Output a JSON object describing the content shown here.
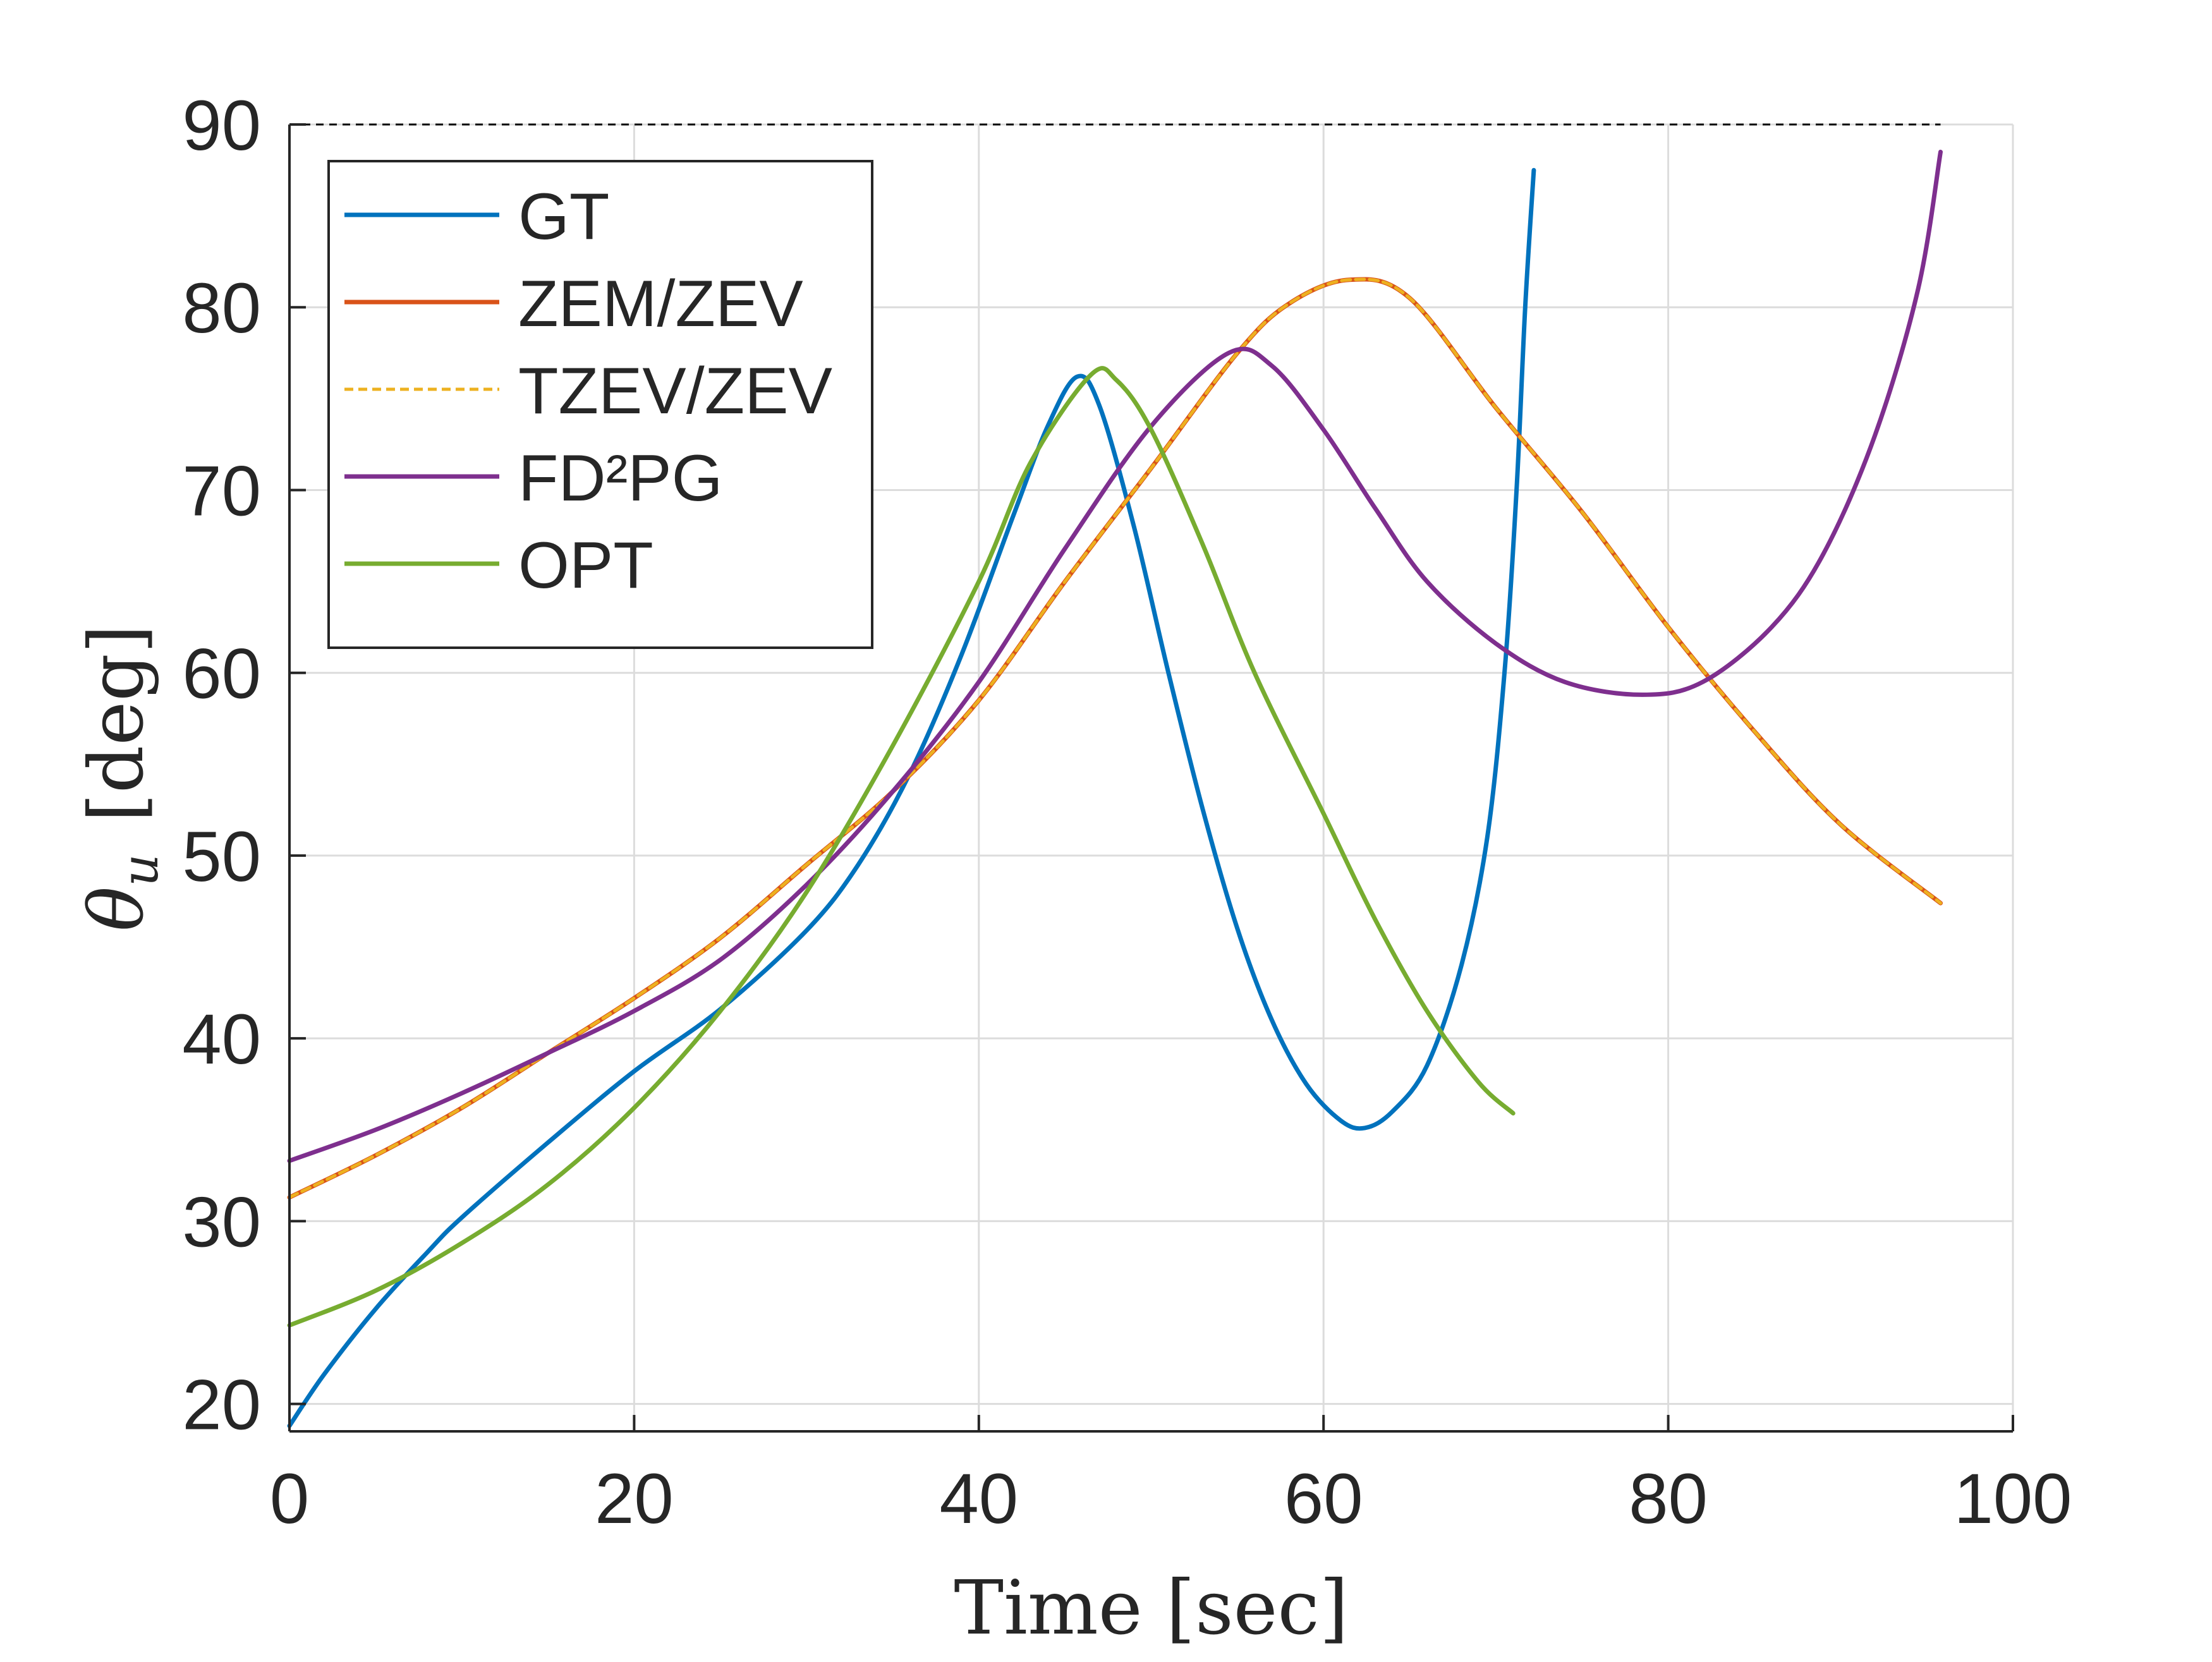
{
  "chart_data": {
    "type": "line",
    "title": "",
    "xlabel": "Time [sec]",
    "ylabel": "θ",
    "ylabel_subscript": "u",
    "ylabel_unit": "[deg]",
    "xlim": [
      0,
      100
    ],
    "ylim": [
      18.5,
      90
    ],
    "x_ticks": [
      0,
      20,
      40,
      60,
      80,
      100
    ],
    "y_ticks": [
      20,
      30,
      40,
      50,
      60,
      70,
      80,
      90
    ],
    "grid": true,
    "legend_position": "top-left",
    "reference_line": {
      "y": 90,
      "x_start": 0,
      "x_end": 95.8,
      "style": "dashed",
      "color": "#000000"
    },
    "series": [
      {
        "name": "GT",
        "color": "#0072BD",
        "style": "solid",
        "points": [
          [
            0,
            18.8
          ],
          [
            2,
            21.6
          ],
          [
            5,
            25.2
          ],
          [
            8,
            28.3
          ],
          [
            10,
            30.2
          ],
          [
            15,
            34.3
          ],
          [
            20,
            38.2
          ],
          [
            25,
            41.6
          ],
          [
            30,
            45.9
          ],
          [
            33,
            49.5
          ],
          [
            36,
            54.5
          ],
          [
            39,
            61.0
          ],
          [
            42,
            68.6
          ],
          [
            44,
            73.5
          ],
          [
            45.7,
            76.2
          ],
          [
            47,
            74.6
          ],
          [
            49,
            68.0
          ],
          [
            51,
            60.0
          ],
          [
            53,
            52.5
          ],
          [
            55,
            46.0
          ],
          [
            57,
            41.0
          ],
          [
            59,
            37.5
          ],
          [
            61,
            35.5
          ],
          [
            62.4,
            35.1
          ],
          [
            64,
            36.0
          ],
          [
            66,
            38.5
          ],
          [
            68,
            44.0
          ],
          [
            69.5,
            51.0
          ],
          [
            70.5,
            60.0
          ],
          [
            71.2,
            70.0
          ],
          [
            71.7,
            80.0
          ],
          [
            72.2,
            87.5
          ]
        ]
      },
      {
        "name": "ZEM/ZEV",
        "color": "#D95319",
        "style": "solid",
        "points": [
          [
            0,
            31.3
          ],
          [
            5,
            33.6
          ],
          [
            10,
            36.2
          ],
          [
            15,
            39.2
          ],
          [
            20,
            42.2
          ],
          [
            25,
            45.5
          ],
          [
            30,
            49.5
          ],
          [
            35,
            53.5
          ],
          [
            40,
            58.5
          ],
          [
            45,
            65.0
          ],
          [
            50,
            71.2
          ],
          [
            55,
            77.5
          ],
          [
            58,
            80.2
          ],
          [
            61.5,
            81.5
          ],
          [
            65,
            80.5
          ],
          [
            70,
            74.5
          ],
          [
            75,
            68.8
          ],
          [
            80,
            62.5
          ],
          [
            85,
            56.8
          ],
          [
            90,
            51.7
          ],
          [
            95.8,
            47.4
          ]
        ]
      },
      {
        "name": "TZEV/ZEV",
        "color": "#EDB120",
        "style": "dashed",
        "points": [
          [
            0,
            31.3
          ],
          [
            5,
            33.6
          ],
          [
            10,
            36.2
          ],
          [
            15,
            39.2
          ],
          [
            20,
            42.2
          ],
          [
            25,
            45.5
          ],
          [
            30,
            49.5
          ],
          [
            35,
            53.5
          ],
          [
            40,
            58.5
          ],
          [
            45,
            65.0
          ],
          [
            50,
            71.2
          ],
          [
            55,
            77.5
          ],
          [
            58,
            80.2
          ],
          [
            61.5,
            81.5
          ],
          [
            65,
            80.5
          ],
          [
            70,
            74.5
          ],
          [
            75,
            68.8
          ],
          [
            80,
            62.5
          ],
          [
            85,
            56.8
          ],
          [
            90,
            51.7
          ],
          [
            95.8,
            47.4
          ]
        ]
      },
      {
        "name": "FD²PG",
        "color": "#7E2F8E",
        "style": "solid",
        "points": [
          [
            0,
            33.3
          ],
          [
            5,
            35.0
          ],
          [
            10,
            37.0
          ],
          [
            15,
            39.2
          ],
          [
            20,
            41.5
          ],
          [
            25,
            44.3
          ],
          [
            30,
            48.4
          ],
          [
            35,
            53.5
          ],
          [
            40,
            59.5
          ],
          [
            45,
            66.8
          ],
          [
            50,
            73.5
          ],
          [
            54.5,
            77.5
          ],
          [
            57,
            76.8
          ],
          [
            60,
            73.3
          ],
          [
            63,
            69.0
          ],
          [
            66,
            65.0
          ],
          [
            70,
            61.6
          ],
          [
            74,
            59.5
          ],
          [
            78.5,
            58.8
          ],
          [
            82,
            59.5
          ],
          [
            86,
            62.5
          ],
          [
            89,
            66.5
          ],
          [
            92,
            73.0
          ],
          [
            94.5,
            81.0
          ],
          [
            95.8,
            88.5
          ]
        ]
      },
      {
        "name": "OPT",
        "color": "#77AC30",
        "style": "solid",
        "points": [
          [
            0,
            24.3
          ],
          [
            5,
            26.2
          ],
          [
            10,
            28.8
          ],
          [
            15,
            32.0
          ],
          [
            20,
            36.2
          ],
          [
            25,
            41.5
          ],
          [
            30,
            48.0
          ],
          [
            35,
            56.0
          ],
          [
            40,
            65.0
          ],
          [
            43,
            71.5
          ],
          [
            46.5,
            76.3
          ],
          [
            48,
            76.0
          ],
          [
            50,
            73.3
          ],
          [
            53,
            67.0
          ],
          [
            56,
            60.0
          ],
          [
            60,
            52.3
          ],
          [
            63,
            46.5
          ],
          [
            66,
            41.5
          ],
          [
            69,
            37.6
          ],
          [
            71,
            35.9
          ]
        ]
      }
    ]
  }
}
